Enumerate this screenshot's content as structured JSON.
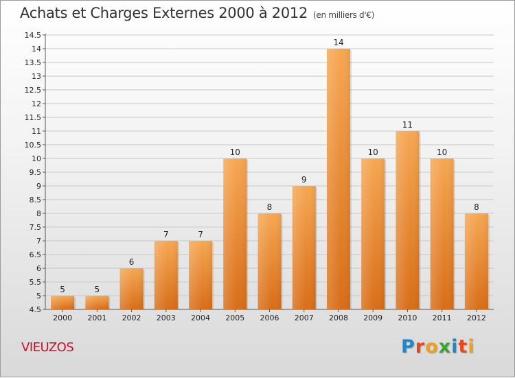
{
  "header": {
    "title": "Achats et Charges Externes 2000 à 2012",
    "unit": "(en milliers d'€)"
  },
  "footer": {
    "city": "VIEUZOS",
    "brand": "Proxiti"
  },
  "colors": {
    "bar_top": "#f6a752",
    "bar_bottom": "#d86d17",
    "brand_p": "#1e88c8",
    "brand_r": "#e8471d",
    "brand_o": "#f0a020",
    "brand_x": "#3aa335"
  },
  "chart_data": {
    "type": "bar",
    "title": "Achats et Charges Externes 2000 à 2012",
    "subtitle": "(en milliers d'€)",
    "categories": [
      "2000",
      "2001",
      "2002",
      "2003",
      "2004",
      "2005",
      "2006",
      "2007",
      "2008",
      "2009",
      "2010",
      "2011",
      "2012"
    ],
    "values": [
      5,
      5,
      6,
      7,
      7,
      10,
      8,
      9,
      14,
      10,
      11,
      10,
      8
    ],
    "yticks": [
      "4.5",
      "5",
      "5.5",
      "6",
      "6.5",
      "7",
      "7.5",
      "8",
      "8.5",
      "9",
      "9.5",
      "10",
      "10.5",
      "11",
      "11.5",
      "12",
      "12.5",
      "13",
      "13.5",
      "14",
      "14.5"
    ],
    "ylim": [
      4.5,
      14.5
    ],
    "xlabel": "",
    "ylabel": "",
    "grid": true
  }
}
